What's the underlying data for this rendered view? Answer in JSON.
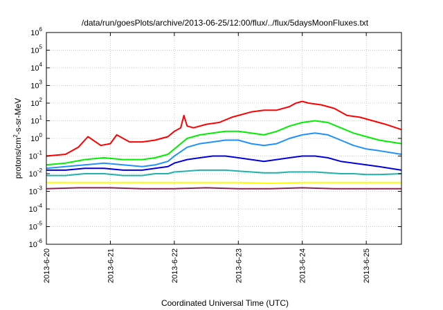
{
  "chart_data": {
    "type": "line",
    "title": "/data/run/goesPlots/archive/2013-06-25/12:00/flux/../flux/5daysMoonFluxes.txt",
    "xlabel": "Coordinated Universal Time (UTC)",
    "ylabel": {
      "prefix": "protons/cm",
      "sup": "2",
      "suffix": "-s-sr-MeV"
    },
    "yscale": "log",
    "ylim_exp": [
      -6,
      6
    ],
    "y_tick_base": "10",
    "y_tick_exponents": [
      "-6",
      "-5",
      "-4",
      "-3",
      "-2",
      "-1",
      "0",
      "1",
      "2",
      "3",
      "4",
      "5",
      "6"
    ],
    "xlim_days": [
      0,
      5.55
    ],
    "x_tick_labels": [
      "2013-6-20",
      "2013-6-21",
      "2013-6-22",
      "2013-6-23",
      "2013-6-24",
      "2013-6-25"
    ],
    "grid": true,
    "series": [
      {
        "color": "#ff0000",
        "x": [
          0,
          0.3,
          0.5,
          0.65,
          0.85,
          1.0,
          1.1,
          1.2,
          1.3,
          1.5,
          1.7,
          1.9,
          2.0,
          2.1,
          2.15,
          2.2,
          2.3,
          2.5,
          2.7,
          2.9,
          3.0,
          3.2,
          3.4,
          3.6,
          3.8,
          3.9,
          4.0,
          4.1,
          4.3,
          4.5,
          4.6,
          4.7,
          4.9,
          5.1,
          5.3,
          5.55
        ],
        "y": [
          -1.0,
          -0.9,
          -0.5,
          0.1,
          -0.4,
          -0.3,
          0.2,
          0.0,
          -0.2,
          -0.2,
          -0.1,
          0.1,
          0.4,
          0.6,
          1.3,
          0.7,
          0.6,
          0.8,
          0.9,
          1.2,
          1.3,
          1.5,
          1.6,
          1.6,
          1.8,
          2.0,
          2.1,
          2.0,
          1.9,
          1.7,
          1.5,
          1.3,
          1.2,
          1.0,
          0.8,
          0.5
        ]
      },
      {
        "color": "#00ee00",
        "x": [
          0,
          0.3,
          0.6,
          0.9,
          1.2,
          1.5,
          1.7,
          1.9,
          2.0,
          2.2,
          2.4,
          2.6,
          2.8,
          3.0,
          3.2,
          3.4,
          3.6,
          3.8,
          4.0,
          4.2,
          4.4,
          4.6,
          4.8,
          5.0,
          5.2,
          5.55
        ],
        "y": [
          -1.5,
          -1.4,
          -1.2,
          -1.1,
          -1.2,
          -1.2,
          -1.1,
          -0.9,
          -0.6,
          0.0,
          0.2,
          0.3,
          0.4,
          0.4,
          0.3,
          0.2,
          0.4,
          0.7,
          0.9,
          1.0,
          0.9,
          0.6,
          0.3,
          0.1,
          -0.1,
          -0.3
        ]
      },
      {
        "color": "#1e90ff",
        "x": [
          0,
          0.3,
          0.6,
          0.9,
          1.2,
          1.5,
          1.7,
          1.9,
          2.0,
          2.2,
          2.4,
          2.6,
          2.8,
          3.0,
          3.2,
          3.4,
          3.6,
          3.8,
          4.0,
          4.2,
          4.4,
          4.6,
          4.8,
          5.0,
          5.2,
          5.55
        ],
        "y": [
          -1.7,
          -1.6,
          -1.5,
          -1.4,
          -1.5,
          -1.6,
          -1.5,
          -1.3,
          -1.0,
          -0.5,
          -0.3,
          -0.2,
          -0.1,
          -0.1,
          -0.3,
          -0.4,
          -0.3,
          0.0,
          0.2,
          0.3,
          0.2,
          -0.1,
          -0.4,
          -0.6,
          -0.7,
          -0.9
        ]
      },
      {
        "color": "#0000dd",
        "x": [
          0,
          0.3,
          0.6,
          0.9,
          1.2,
          1.5,
          1.7,
          1.9,
          2.0,
          2.2,
          2.4,
          2.6,
          2.8,
          3.0,
          3.2,
          3.4,
          3.6,
          3.8,
          4.0,
          4.2,
          4.4,
          4.6,
          4.8,
          5.0,
          5.2,
          5.55
        ],
        "y": [
          -1.8,
          -1.8,
          -1.7,
          -1.7,
          -1.8,
          -1.8,
          -1.7,
          -1.6,
          -1.4,
          -1.2,
          -1.1,
          -1.0,
          -1.0,
          -1.1,
          -1.2,
          -1.3,
          -1.2,
          -1.1,
          -1.0,
          -1.0,
          -1.1,
          -1.3,
          -1.4,
          -1.5,
          -1.6,
          -1.8
        ]
      },
      {
        "color": "#20b2aa",
        "x": [
          0,
          0.3,
          0.6,
          0.9,
          1.2,
          1.5,
          1.7,
          1.9,
          2.0,
          2.2,
          2.4,
          2.6,
          2.8,
          3.0,
          3.2,
          3.4,
          3.6,
          3.8,
          4.0,
          4.2,
          4.4,
          4.6,
          4.8,
          5.0,
          5.2,
          5.55
        ],
        "y": [
          -2.1,
          -2.1,
          -2.0,
          -2.0,
          -2.1,
          -2.1,
          -2.0,
          -2.0,
          -1.9,
          -1.85,
          -1.8,
          -1.8,
          -1.8,
          -1.85,
          -1.9,
          -1.95,
          -1.95,
          -1.9,
          -1.9,
          -1.9,
          -1.95,
          -2.0,
          -2.0,
          -2.05,
          -2.05,
          -2.0
        ]
      },
      {
        "color": "#ffff00",
        "x": [
          0,
          0.5,
          1.0,
          1.5,
          2.0,
          2.5,
          3.0,
          3.5,
          4.0,
          4.5,
          5.0,
          5.55
        ],
        "y": [
          -2.5,
          -2.5,
          -2.5,
          -2.5,
          -2.5,
          -2.5,
          -2.5,
          -2.55,
          -2.5,
          -2.5,
          -2.5,
          -2.5
        ]
      },
      {
        "color": "#8b2252",
        "x": [
          0,
          0.5,
          1.0,
          1.5,
          2.0,
          2.5,
          3.0,
          3.5,
          4.0,
          4.5,
          5.0,
          5.55
        ],
        "y": [
          -2.85,
          -2.8,
          -2.8,
          -2.85,
          -2.85,
          -2.8,
          -2.85,
          -2.85,
          -2.8,
          -2.85,
          -2.85,
          -2.85
        ]
      }
    ]
  }
}
